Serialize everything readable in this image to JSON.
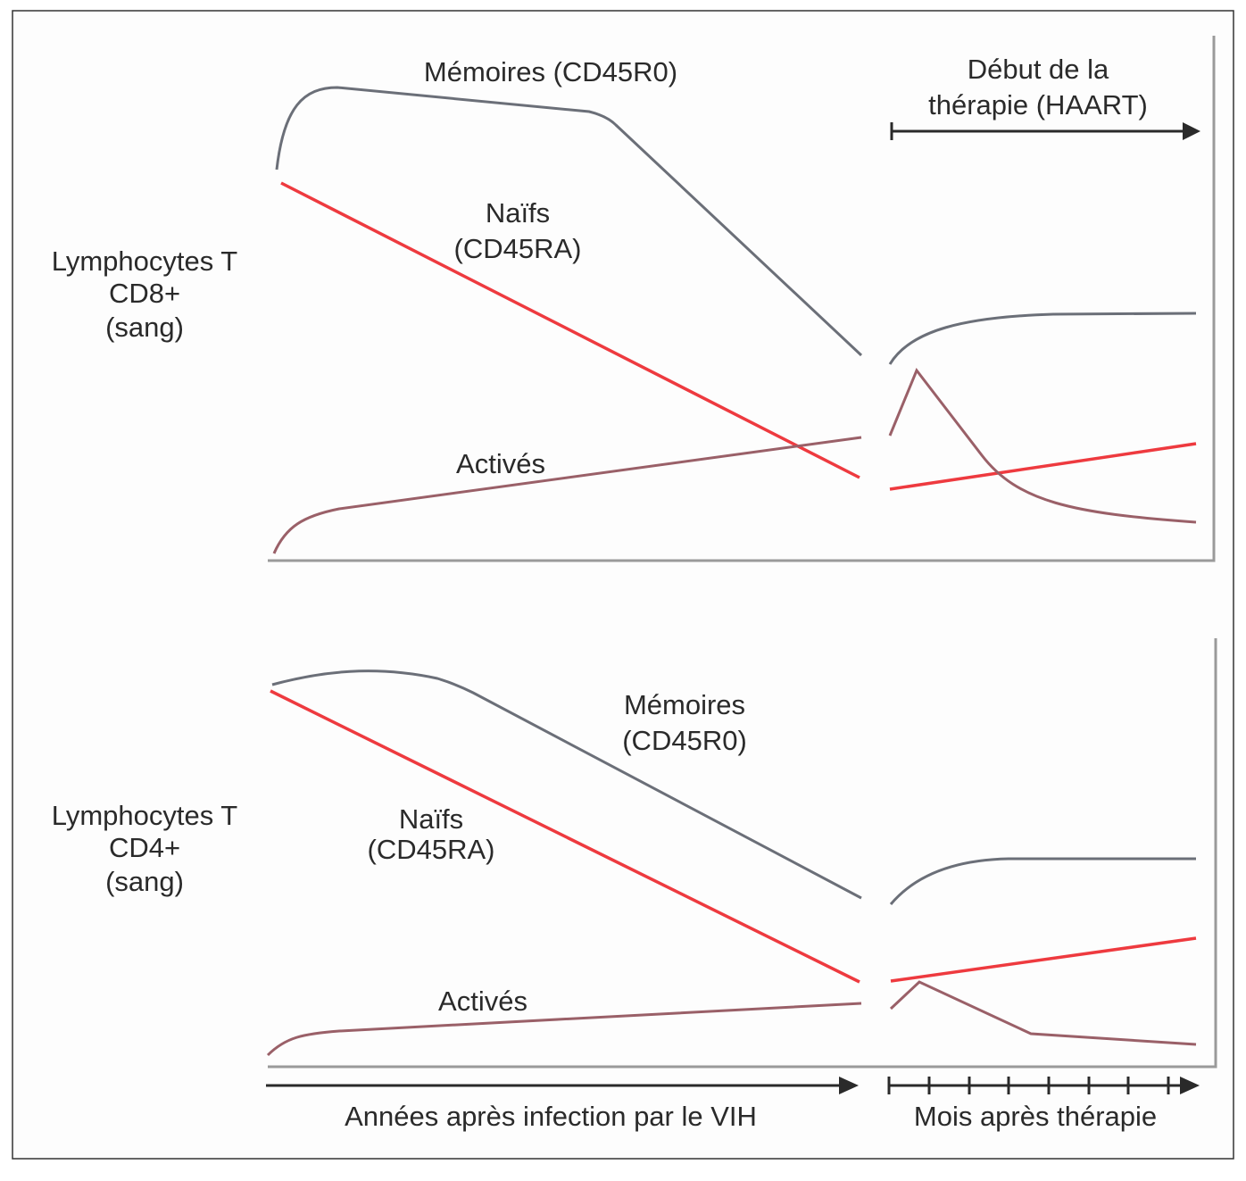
{
  "panels": [
    {
      "title": [
        "Lymphocytes T",
        "CD8+",
        "(sang)"
      ],
      "labels": {
        "memoires": "Mémoires (CD45R0)",
        "naifs": [
          "Naïfs",
          "(CD45RA)"
        ],
        "actives": "Activés"
      }
    },
    {
      "title": [
        "Lymphocytes T",
        "CD4+",
        "(sang)"
      ],
      "labels": {
        "memoires": [
          "Mémoires",
          "(CD45R0)"
        ],
        "naifs": [
          "Naïfs",
          "(CD45RA)"
        ],
        "actives": "Activés"
      }
    }
  ],
  "therapy_start": [
    "Début de la",
    "thérapie (HAART)"
  ],
  "x_axis": {
    "years": "Années après infection par le VIH",
    "months": "Mois après thérapie"
  },
  "colors": {
    "memoires": "#6b6f78",
    "naifs": "#ee3a3f",
    "actives": "#9a6068"
  }
}
